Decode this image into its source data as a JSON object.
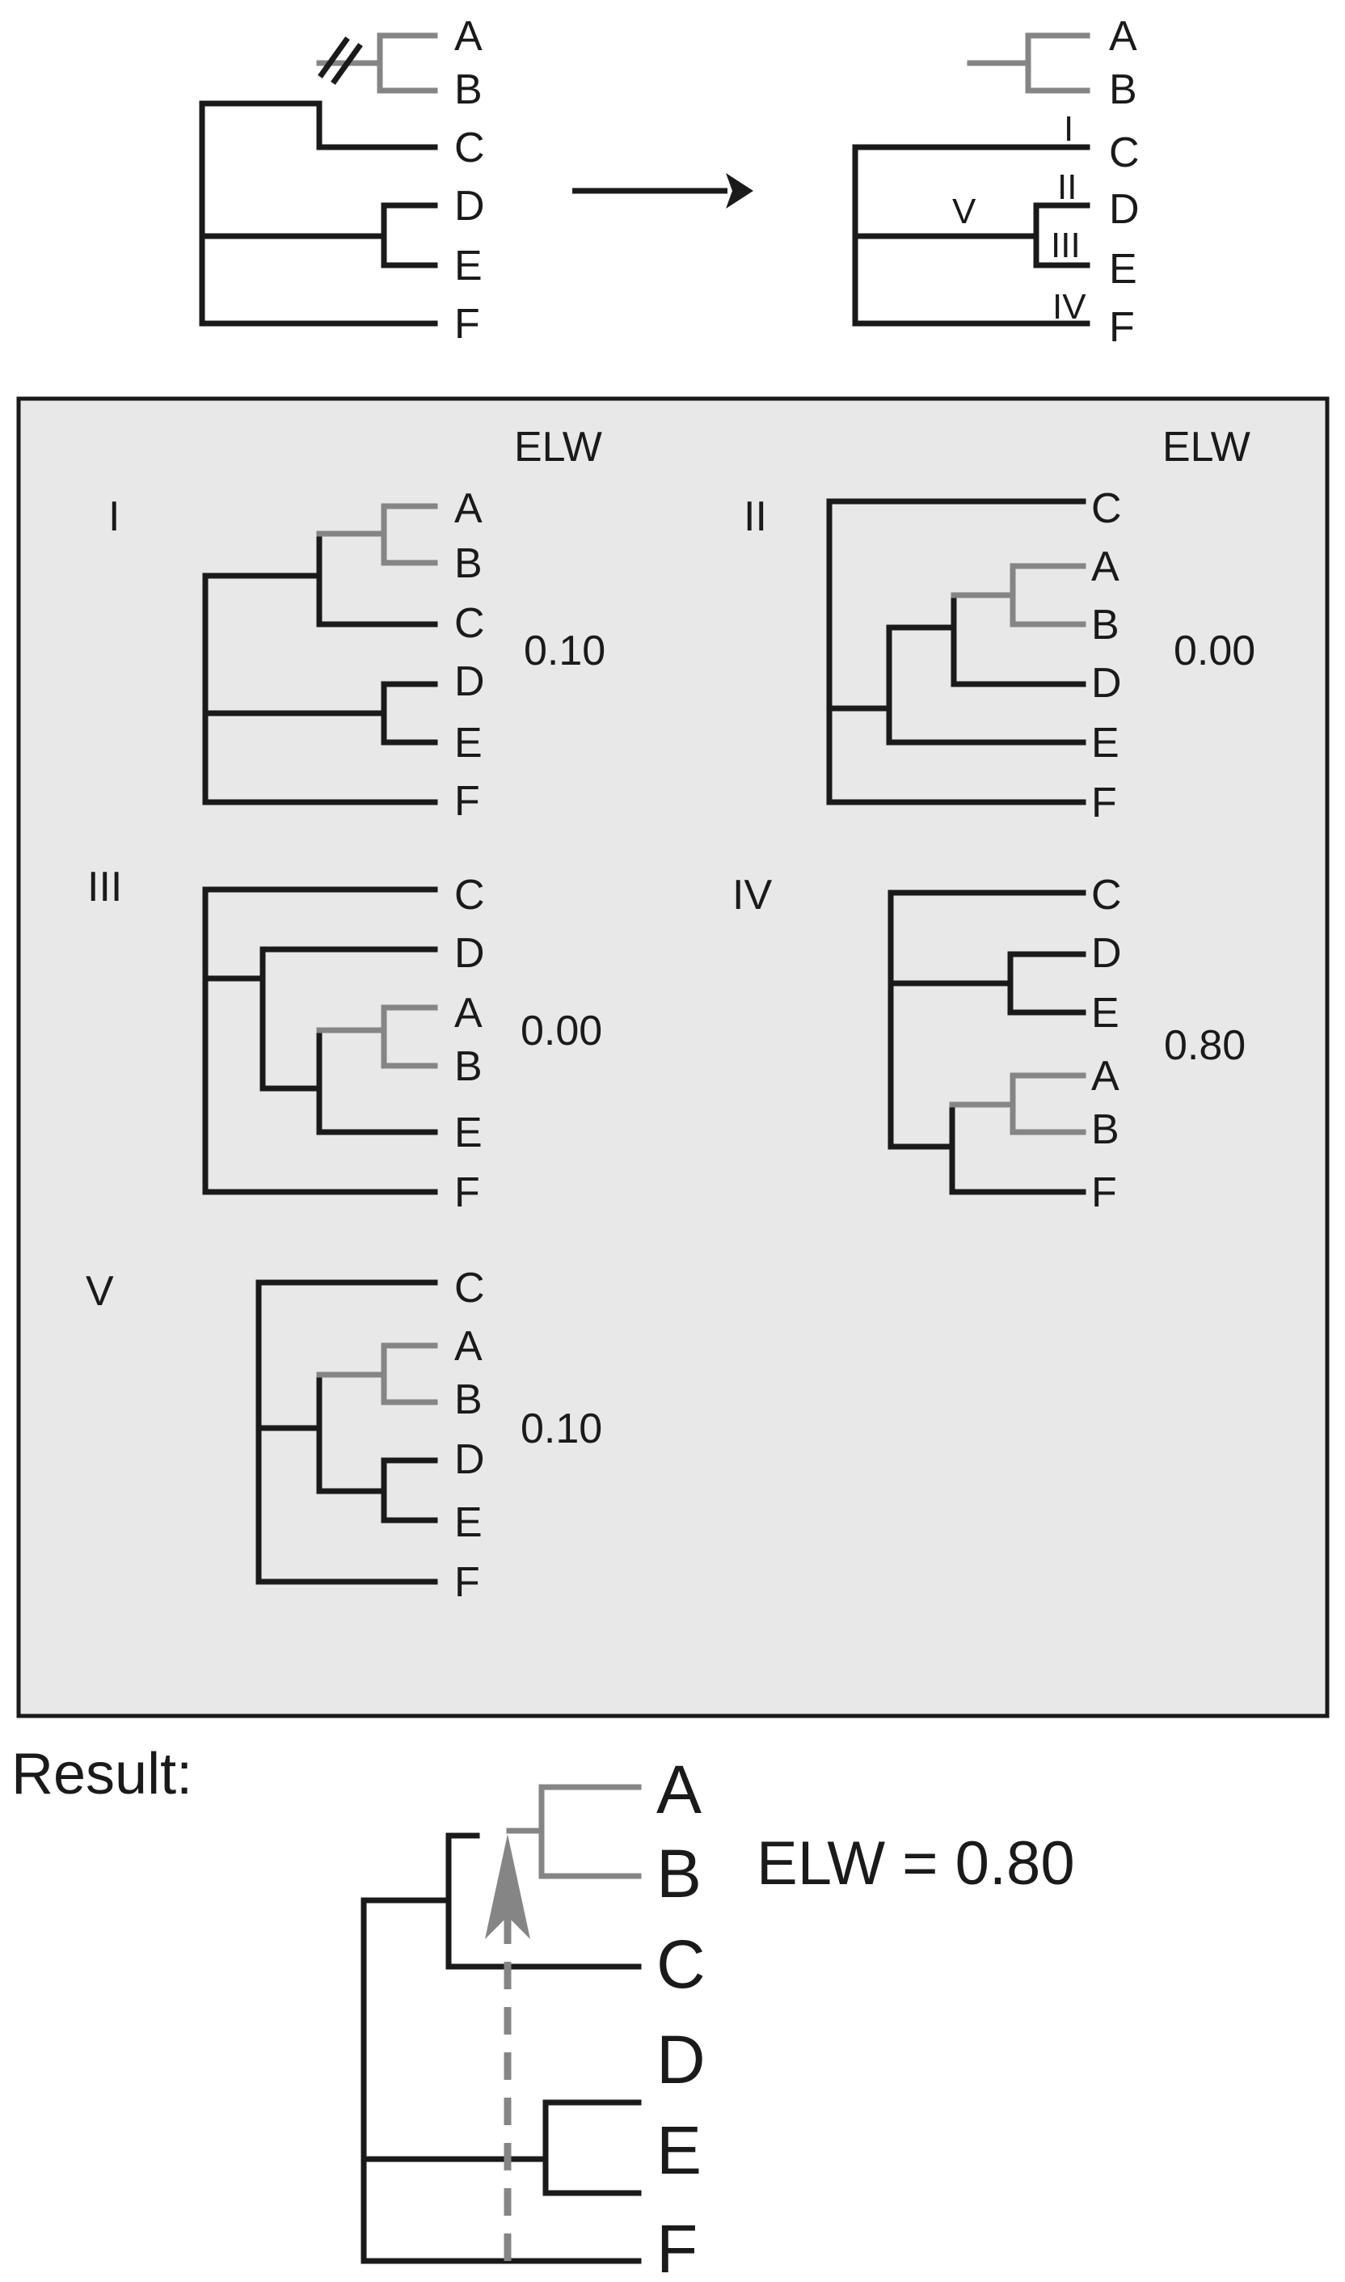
{
  "top_left_tree": {
    "leaves": [
      "A",
      "B",
      "C",
      "D",
      "E",
      "F"
    ]
  },
  "top_right_tree": {
    "leaves": [
      "A",
      "B",
      "C",
      "D",
      "E",
      "F"
    ],
    "branch_labels": [
      "I",
      "II",
      "III",
      "IV",
      "V"
    ]
  },
  "panel": {
    "elw_header_left": "ELW",
    "elw_header_right": "ELW",
    "trees": [
      {
        "id": "I",
        "leaves": [
          "A",
          "B",
          "C",
          "D",
          "E",
          "F"
        ],
        "elw": "0.10"
      },
      {
        "id": "II",
        "leaves": [
          "C",
          "A",
          "B",
          "D",
          "E",
          "F"
        ],
        "elw": "0.00"
      },
      {
        "id": "III",
        "leaves": [
          "C",
          "D",
          "A",
          "B",
          "E",
          "F"
        ],
        "elw": "0.00"
      },
      {
        "id": "IV",
        "leaves": [
          "C",
          "D",
          "E",
          "A",
          "B",
          "F"
        ],
        "elw": "0.80"
      },
      {
        "id": "V",
        "leaves": [
          "C",
          "A",
          "B",
          "D",
          "E",
          "F"
        ],
        "elw": "0.10"
      }
    ]
  },
  "result": {
    "title": "Result:",
    "leaves": [
      "A",
      "B",
      "C",
      "D",
      "E",
      "F"
    ],
    "elw_text": "ELW = 0.80"
  },
  "colors": {
    "pruned_clade": "#858585",
    "tree": "#1a1a1a",
    "panel_background": "#e8e8e8"
  }
}
